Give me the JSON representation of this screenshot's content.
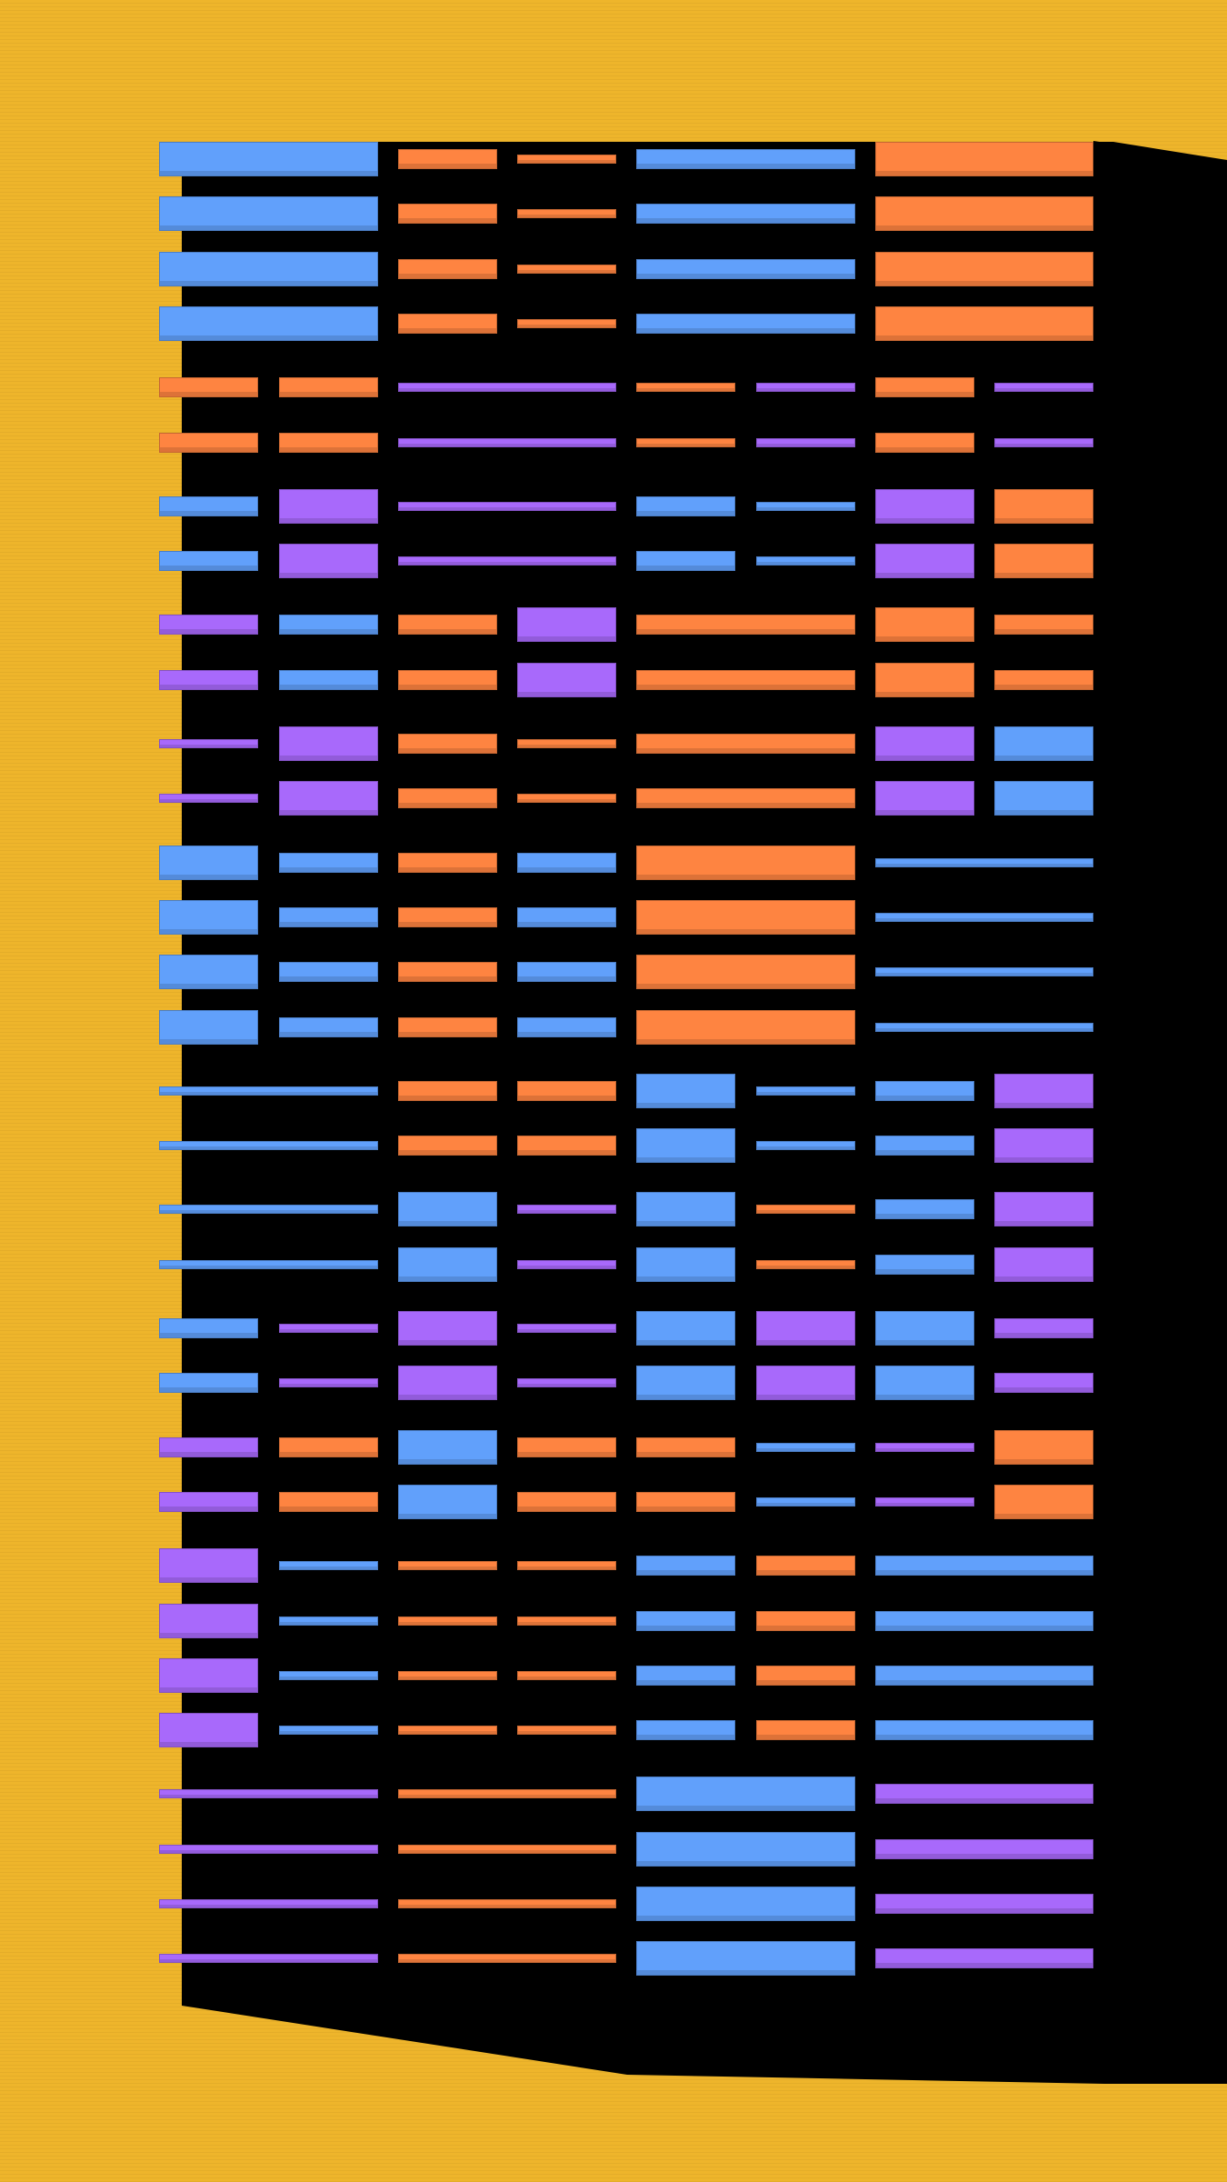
{
  "colors": {
    "background": "#eeb52b",
    "shadow": "#000000",
    "blue": "#61a0fb",
    "orange": "#fe8441",
    "purple": "#a869fb"
  },
  "groups": [
    {
      "rows": 4,
      "cells": [
        [
          "blue",
          "L",
          1,
          2
        ],
        [
          "orange",
          "M",
          3,
          3
        ],
        [
          "orange",
          "S",
          4,
          4
        ],
        [
          "blue",
          "M",
          5,
          6
        ],
        [
          "orange",
          "L",
          7,
          8
        ]
      ]
    },
    {
      "rows": 2,
      "cells": [
        [
          "orange",
          "M",
          1,
          1
        ],
        [
          "orange",
          "M",
          2,
          2
        ],
        [
          "purple",
          "S",
          3,
          4
        ],
        [
          "orange",
          "S",
          5,
          5
        ],
        [
          "purple",
          "S",
          6,
          6
        ],
        [
          "orange",
          "M",
          7,
          7
        ],
        [
          "purple",
          "S",
          8,
          8
        ]
      ]
    },
    {
      "rows": 2,
      "cells": [
        [
          "blue",
          "M",
          1,
          1
        ],
        [
          "purple",
          "L",
          2,
          2
        ],
        [
          "purple",
          "S",
          3,
          4
        ],
        [
          "blue",
          "M",
          5,
          5
        ],
        [
          "blue",
          "S",
          6,
          6
        ],
        [
          "purple",
          "L",
          7,
          7
        ],
        [
          "orange",
          "L",
          8,
          8
        ]
      ]
    },
    {
      "rows": 2,
      "cells": [
        [
          "purple",
          "M",
          1,
          1
        ],
        [
          "blue",
          "M",
          2,
          2
        ],
        [
          "orange",
          "M",
          3,
          3
        ],
        [
          "purple",
          "L",
          4,
          4
        ],
        [
          "orange",
          "M",
          5,
          6
        ],
        [
          "orange",
          "L",
          7,
          7
        ],
        [
          "orange",
          "M",
          8,
          8
        ]
      ]
    },
    {
      "rows": 2,
      "cells": [
        [
          "purple",
          "S",
          1,
          1
        ],
        [
          "purple",
          "L",
          2,
          2
        ],
        [
          "orange",
          "M",
          3,
          3
        ],
        [
          "orange",
          "S",
          4,
          4
        ],
        [
          "orange",
          "M",
          5,
          6
        ],
        [
          "purple",
          "L",
          7,
          7
        ],
        [
          "blue",
          "L",
          8,
          8
        ]
      ]
    },
    {
      "rows": 4,
      "cells": [
        [
          "blue",
          "L",
          1,
          1
        ],
        [
          "blue",
          "M",
          2,
          2
        ],
        [
          "orange",
          "M",
          3,
          3
        ],
        [
          "blue",
          "M",
          4,
          4
        ],
        [
          "orange",
          "L",
          5,
          6
        ],
        [
          "blue",
          "S",
          7,
          8
        ]
      ]
    },
    {
      "rows": 2,
      "cells": [
        [
          "blue",
          "S",
          1,
          2
        ],
        [
          "orange",
          "M",
          3,
          3
        ],
        [
          "orange",
          "M",
          4,
          4
        ],
        [
          "blue",
          "L",
          5,
          5
        ],
        [
          "blue",
          "S",
          6,
          6
        ],
        [
          "blue",
          "M",
          7,
          7
        ],
        [
          "purple",
          "L",
          8,
          8
        ]
      ]
    },
    {
      "rows": 2,
      "cells": [
        [
          "blue",
          "S",
          1,
          2
        ],
        [
          "blue",
          "L",
          3,
          3
        ],
        [
          "purple",
          "S",
          4,
          4
        ],
        [
          "blue",
          "L",
          5,
          5
        ],
        [
          "orange",
          "S",
          6,
          6
        ],
        [
          "blue",
          "M",
          7,
          7
        ],
        [
          "purple",
          "L",
          8,
          8
        ]
      ]
    },
    {
      "rows": 2,
      "cells": [
        [
          "blue",
          "M",
          1,
          1
        ],
        [
          "purple",
          "S",
          2,
          2
        ],
        [
          "purple",
          "L",
          3,
          3
        ],
        [
          "purple",
          "S",
          4,
          4
        ],
        [
          "blue",
          "L",
          5,
          5
        ],
        [
          "purple",
          "L",
          6,
          6
        ],
        [
          "blue",
          "L",
          7,
          7
        ],
        [
          "purple",
          "M",
          8,
          8
        ]
      ]
    },
    {
      "rows": 2,
      "cells": [
        [
          "purple",
          "M",
          1,
          1
        ],
        [
          "orange",
          "M",
          2,
          2
        ],
        [
          "blue",
          "L",
          3,
          3
        ],
        [
          "orange",
          "M",
          4,
          4
        ],
        [
          "orange",
          "M",
          5,
          5
        ],
        [
          "blue",
          "S",
          6,
          6
        ],
        [
          "purple",
          "S",
          7,
          7
        ],
        [
          "orange",
          "L",
          8,
          8
        ]
      ]
    },
    {
      "rows": 4,
      "cells": [
        [
          "purple",
          "L",
          1,
          1
        ],
        [
          "blue",
          "S",
          2,
          2
        ],
        [
          "orange",
          "S",
          3,
          3
        ],
        [
          "orange",
          "S",
          4,
          4
        ],
        [
          "blue",
          "M",
          5,
          5
        ],
        [
          "orange",
          "M",
          6,
          6
        ],
        [
          "blue",
          "M",
          7,
          8
        ]
      ]
    },
    {
      "rows": 4,
      "cells": [
        [
          "purple",
          "S",
          1,
          2
        ],
        [
          "orange",
          "S",
          3,
          4
        ],
        [
          "blue",
          "L",
          5,
          6
        ],
        [
          "purple",
          "M",
          7,
          8
        ]
      ]
    }
  ]
}
